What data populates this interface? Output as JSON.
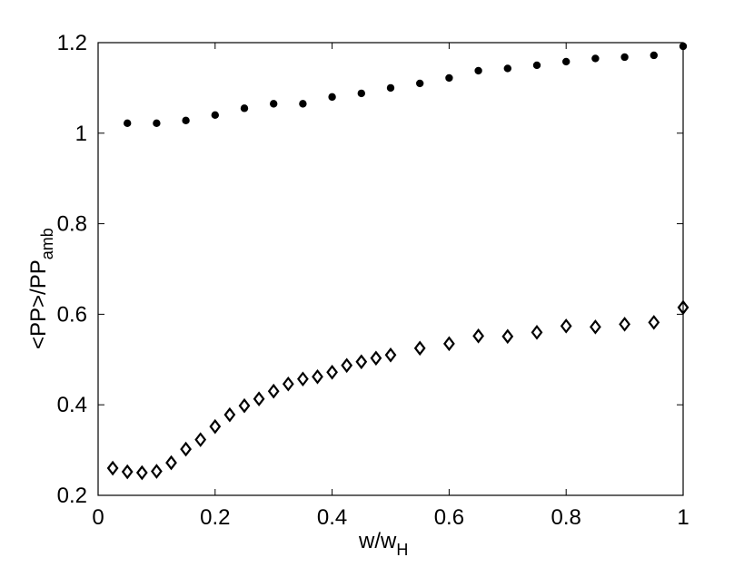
{
  "chart_data": {
    "type": "scatter",
    "title": "",
    "xlabel": {
      "main": "w/w",
      "sub": "H"
    },
    "ylabel": {
      "main": "<PP>/PP",
      "sub": "amb"
    },
    "xlim": [
      0,
      1
    ],
    "ylim": [
      0.2,
      1.2
    ],
    "xticks": [
      0,
      0.2,
      0.4,
      0.6,
      0.8,
      1
    ],
    "xtick_labels": [
      "0",
      "0.2",
      "0.4",
      "0.6",
      "0.8",
      "1"
    ],
    "yticks": [
      0.2,
      0.4,
      0.6,
      0.8,
      1.0,
      1.2
    ],
    "ytick_labels": [
      "0.2",
      "0.4",
      "0.6",
      "0.8",
      "1",
      "1.2"
    ],
    "grid": false,
    "series": [
      {
        "marker": "filled-circle",
        "color": "#000000",
        "x": [
          0.05,
          0.1,
          0.15,
          0.2,
          0.25,
          0.3,
          0.35,
          0.4,
          0.45,
          0.5,
          0.55,
          0.6,
          0.65,
          0.7,
          0.75,
          0.8,
          0.85,
          0.9,
          0.95,
          1.0
        ],
        "y": [
          1.022,
          1.022,
          1.028,
          1.04,
          1.055,
          1.065,
          1.065,
          1.08,
          1.088,
          1.1,
          1.11,
          1.122,
          1.138,
          1.143,
          1.15,
          1.158,
          1.165,
          1.168,
          1.172,
          1.192
        ]
      },
      {
        "marker": "open-diamond",
        "color": "#000000",
        "x": [
          0.025,
          0.05,
          0.075,
          0.1,
          0.125,
          0.15,
          0.175,
          0.2,
          0.225,
          0.25,
          0.275,
          0.3,
          0.325,
          0.35,
          0.375,
          0.4,
          0.425,
          0.45,
          0.475,
          0.5,
          0.55,
          0.6,
          0.65,
          0.7,
          0.75,
          0.8,
          0.85,
          0.9,
          0.95,
          1.0
        ],
        "y": [
          0.26,
          0.252,
          0.25,
          0.253,
          0.272,
          0.302,
          0.323,
          0.352,
          0.378,
          0.398,
          0.413,
          0.43,
          0.446,
          0.457,
          0.462,
          0.472,
          0.487,
          0.495,
          0.503,
          0.51,
          0.525,
          0.535,
          0.552,
          0.551,
          0.56,
          0.574,
          0.572,
          0.578,
          0.582,
          0.615
        ]
      }
    ]
  }
}
